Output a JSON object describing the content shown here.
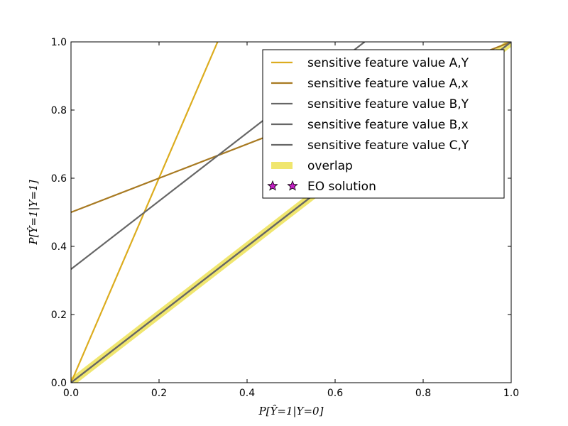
{
  "chart_data": {
    "type": "line",
    "title": "",
    "xlabel": "P[Ŷ=1|Y=0]",
    "ylabel": "P[Ŷ=1|Y=1]",
    "xlim": [
      0,
      1
    ],
    "ylim": [
      0,
      1
    ],
    "xticks": [
      "0.0",
      "0.2",
      "0.4",
      "0.6",
      "0.8",
      "1.0"
    ],
    "yticks": [
      "0.0",
      "0.2",
      "0.4",
      "0.6",
      "0.8",
      "1.0"
    ],
    "grid": false,
    "legend_position": "top-right",
    "series": [
      {
        "name": "sensitive feature value A,Y",
        "color": "#dcac1e",
        "style": "line",
        "points": [
          [
            0,
            0
          ],
          [
            0.333,
            1.0
          ]
        ]
      },
      {
        "name": "sensitive feature value A,x",
        "color": "#a87a22",
        "style": "line",
        "points": [
          [
            0,
            0.5
          ],
          [
            1.0,
            1.0
          ]
        ]
      },
      {
        "name": "sensitive feature value B,Y",
        "color": "#666666",
        "style": "line",
        "points": [
          [
            0,
            0
          ],
          [
            1.0,
            1.0
          ]
        ]
      },
      {
        "name": "sensitive feature value B,x",
        "color": "#666666",
        "style": "line",
        "points": [
          [
            0,
            0.333
          ],
          [
            0.667,
            1.0
          ]
        ]
      },
      {
        "name": "sensitive feature value C,Y",
        "color": "#666666",
        "style": "line",
        "points": [
          [
            0,
            0
          ],
          [
            1.0,
            1.0
          ]
        ]
      },
      {
        "name": "overlap",
        "color": "#f0e66e",
        "style": "band",
        "points": [
          [
            0,
            0
          ],
          [
            1.0,
            1.0
          ]
        ]
      },
      {
        "name": "EO solution",
        "color": "#c41ec4",
        "style": "marker",
        "points": []
      }
    ]
  }
}
